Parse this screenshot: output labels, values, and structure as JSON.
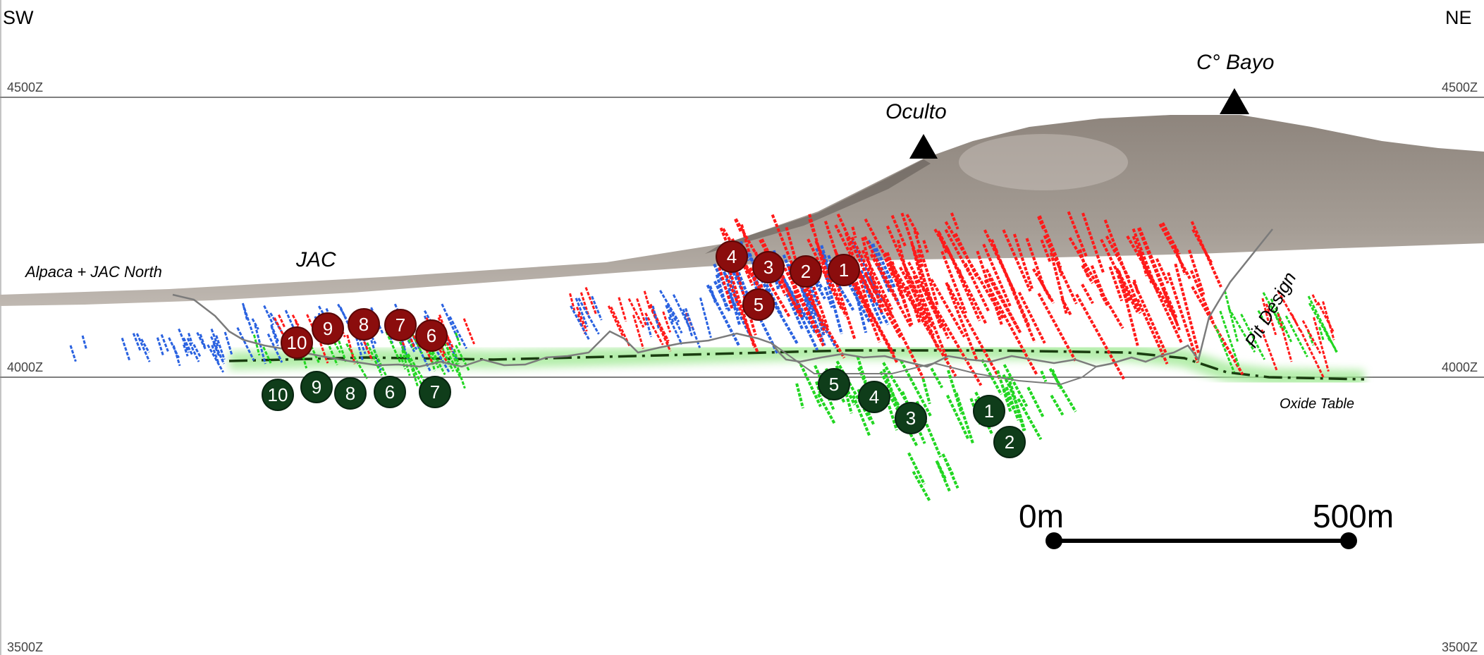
{
  "header": {
    "direction_left": "SW",
    "direction_right": "NE"
  },
  "elevations": {
    "top": "4500Z",
    "middle": "4000Z",
    "bottom": "3500Z"
  },
  "places": {
    "alpaca": "Alpaca + JAC North",
    "jac": "JAC",
    "oculto": "Oculto",
    "cbayo": "C° Bayo",
    "pit": "Pit Design",
    "oxide": "Oxide Table"
  },
  "scale_bar": {
    "start": "0m",
    "end": "500m"
  },
  "markers": {
    "red": [
      "1",
      "2",
      "3",
      "4",
      "5",
      "6",
      "7",
      "8",
      "9",
      "10"
    ],
    "green": [
      "1",
      "2",
      "3",
      "4",
      "5",
      "6",
      "7",
      "8",
      "9",
      "10"
    ]
  },
  "colors": {
    "red_marker": "#8b0d0d",
    "green_marker": "#0f3d1a",
    "terrain": "#9a918a",
    "drill_red": "#ff1a1a",
    "drill_blue": "#2a62e0",
    "drill_green": "#22d622",
    "oxide_glow": "#9be88f"
  }
}
